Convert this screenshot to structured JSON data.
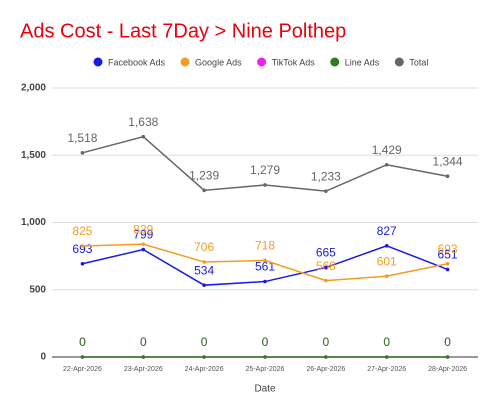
{
  "chart_data": {
    "type": "line",
    "title": "Ads Cost - Last 7Day > Nine Polthep",
    "x_label": "Date",
    "categories": [
      "22-Apr-2026",
      "23-Apr-2026",
      "24-Apr-2026",
      "25-Apr-2026",
      "26-Apr-2026",
      "27-Apr-2026",
      "28-Apr-2026"
    ],
    "series": [
      {
        "name": "Facebook Ads",
        "color": "#1a1ae6",
        "values": [
          693,
          799,
          534,
          561,
          665,
          827,
          651
        ]
      },
      {
        "name": "Google Ads",
        "color": "#f29d1e",
        "values": [
          825,
          839,
          706,
          718,
          568,
          601,
          693
        ]
      },
      {
        "name": "TikTok Ads",
        "color": "#f020f0",
        "values": [
          0,
          0,
          0,
          0,
          0,
          0,
          0
        ]
      },
      {
        "name": "Line Ads",
        "color": "#2f7d1f",
        "values": [
          0,
          0,
          0,
          0,
          0,
          0,
          0
        ]
      },
      {
        "name": "Total",
        "color": "#666666",
        "values": [
          1518,
          1638,
          1239,
          1279,
          1233,
          1429,
          1344
        ],
        "value_labels": [
          "1,518",
          "1,638",
          "1,239",
          "1,279",
          "1,233",
          "1,429",
          "1,344"
        ]
      }
    ],
    "ylim": [
      0,
      2000
    ],
    "yticks": [
      0,
      500,
      {
        "value": 1000,
        "label": "1,000"
      },
      {
        "value": 1500,
        "label": "1,500"
      },
      {
        "value": 2000,
        "label": "2,000"
      }
    ],
    "grid": true,
    "legend": "top"
  }
}
